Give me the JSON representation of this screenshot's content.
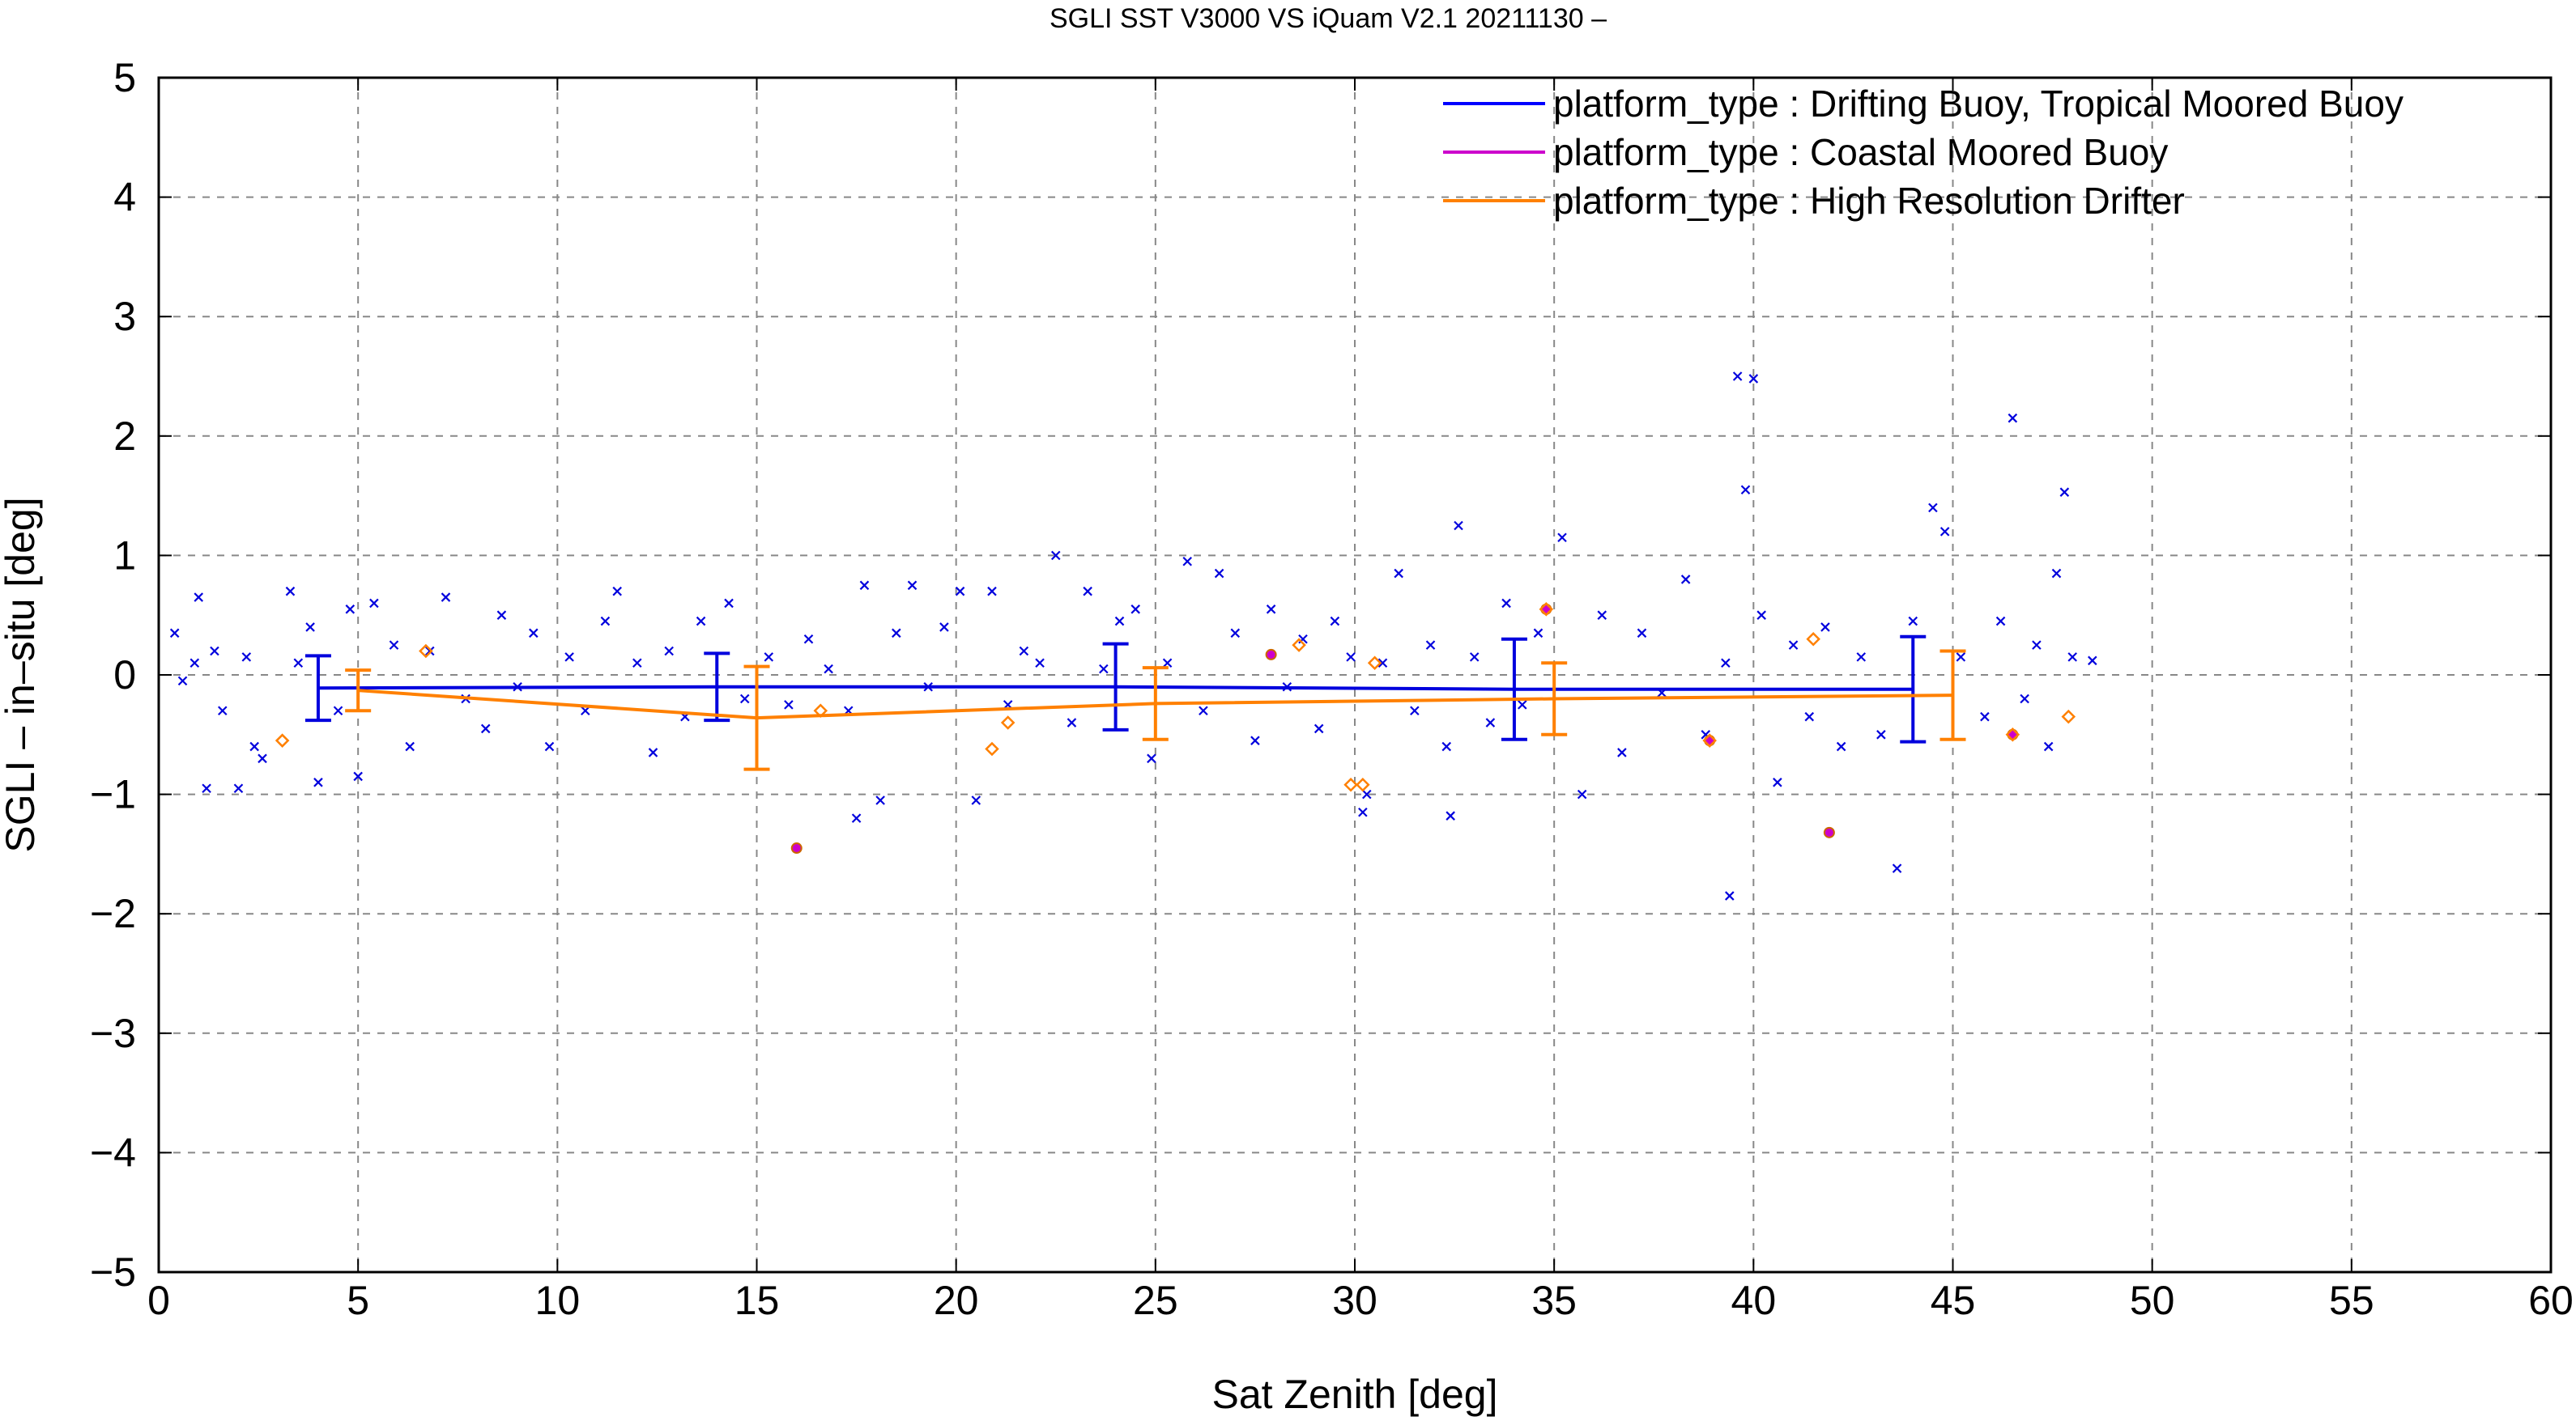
{
  "chart_data": {
    "type": "scatter",
    "title": "SGLI SST V3000 VS iQuam V2.1 20211130 –",
    "xlabel": "Sat Zenith [deg]",
    "ylabel": "SGLI – in–situ [deg]",
    "xlim": [
      0,
      60
    ],
    "ylim": [
      -5,
      5
    ],
    "xticks": [
      0,
      5,
      10,
      15,
      20,
      25,
      30,
      35,
      40,
      45,
      50,
      55,
      60
    ],
    "yticks": [
      -5,
      -4,
      -3,
      -2,
      -1,
      0,
      1,
      2,
      3,
      4,
      5
    ],
    "ytick_labels": [
      "−5",
      "−4",
      "−3",
      "−2",
      "−1",
      "0",
      "1",
      "2",
      "3",
      "4",
      "5"
    ],
    "grid": true,
    "legend_position": "top-right",
    "series": [
      {
        "name": "platform_type : Drifting Buoy, Tropical Moored Buoy",
        "color": "#0000dd",
        "marker": "x",
        "mean_line": {
          "x": [
            4,
            14,
            24,
            34,
            44
          ],
          "y": [
            -0.11,
            -0.1,
            -0.1,
            -0.12,
            -0.12
          ],
          "err": [
            0.27,
            0.28,
            0.36,
            0.42,
            0.44
          ]
        },
        "points": [
          [
            0.4,
            0.35
          ],
          [
            0.6,
            -0.05
          ],
          [
            0.9,
            0.1
          ],
          [
            1.0,
            0.65
          ],
          [
            1.2,
            -0.95
          ],
          [
            1.4,
            0.2
          ],
          [
            1.6,
            -0.3
          ],
          [
            2.0,
            -0.95
          ],
          [
            2.2,
            0.15
          ],
          [
            2.4,
            -0.6
          ],
          [
            2.6,
            -0.7
          ],
          [
            3.3,
            0.7
          ],
          [
            3.5,
            0.1
          ],
          [
            3.8,
            0.4
          ],
          [
            4.0,
            -0.9
          ],
          [
            4.5,
            -0.3
          ],
          [
            4.8,
            0.55
          ],
          [
            5.0,
            -0.85
          ],
          [
            5.4,
            0.6
          ],
          [
            5.9,
            0.25
          ],
          [
            6.3,
            -0.6
          ],
          [
            6.8,
            0.2
          ],
          [
            7.2,
            0.65
          ],
          [
            7.7,
            -0.2
          ],
          [
            8.2,
            -0.45
          ],
          [
            8.6,
            0.5
          ],
          [
            9.0,
            -0.1
          ],
          [
            9.4,
            0.35
          ],
          [
            9.8,
            -0.6
          ],
          [
            10.3,
            0.15
          ],
          [
            10.7,
            -0.3
          ],
          [
            11.2,
            0.45
          ],
          [
            11.5,
            0.7
          ],
          [
            12.0,
            0.1
          ],
          [
            12.4,
            -0.65
          ],
          [
            12.8,
            0.2
          ],
          [
            13.2,
            -0.35
          ],
          [
            13.6,
            0.45
          ],
          [
            14.3,
            0.6
          ],
          [
            14.7,
            -0.2
          ],
          [
            15.3,
            0.15
          ],
          [
            15.8,
            -0.25
          ],
          [
            16.3,
            0.3
          ],
          [
            16.8,
            0.05
          ],
          [
            17.3,
            -0.3
          ],
          [
            17.7,
            0.75
          ],
          [
            18.1,
            -1.05
          ],
          [
            18.5,
            0.35
          ],
          [
            18.9,
            0.75
          ],
          [
            19.3,
            -0.1
          ],
          [
            19.7,
            0.4
          ],
          [
            20.1,
            0.7
          ],
          [
            20.5,
            -1.05
          ],
          [
            20.9,
            0.7
          ],
          [
            21.3,
            -0.25
          ],
          [
            21.7,
            0.2
          ],
          [
            22.1,
            0.1
          ],
          [
            22.5,
            1.0
          ],
          [
            22.9,
            -0.4
          ],
          [
            23.3,
            0.7
          ],
          [
            23.7,
            0.05
          ],
          [
            24.1,
            0.45
          ],
          [
            24.5,
            0.55
          ],
          [
            24.9,
            -0.7
          ],
          [
            25.3,
            0.1
          ],
          [
            25.8,
            0.95
          ],
          [
            26.2,
            -0.3
          ],
          [
            26.6,
            0.85
          ],
          [
            27.0,
            0.35
          ],
          [
            27.5,
            -0.55
          ],
          [
            27.9,
            0.55
          ],
          [
            28.3,
            -0.1
          ],
          [
            28.7,
            0.3
          ],
          [
            29.1,
            -0.45
          ],
          [
            29.5,
            0.45
          ],
          [
            29.9,
            0.15
          ],
          [
            30.3,
            -1.0
          ],
          [
            30.7,
            0.1
          ],
          [
            31.1,
            0.85
          ],
          [
            31.5,
            -0.3
          ],
          [
            31.9,
            0.25
          ],
          [
            32.3,
            -0.6
          ],
          [
            32.6,
            1.25
          ],
          [
            33.0,
            0.15
          ],
          [
            33.4,
            -0.4
          ],
          [
            33.8,
            0.6
          ],
          [
            34.2,
            -0.25
          ],
          [
            34.6,
            0.35
          ],
          [
            35.2,
            1.15
          ],
          [
            35.7,
            -1.0
          ],
          [
            36.2,
            0.5
          ],
          [
            36.7,
            -0.65
          ],
          [
            37.2,
            0.35
          ],
          [
            37.7,
            -0.15
          ],
          [
            38.3,
            0.8
          ],
          [
            38.8,
            -0.5
          ],
          [
            39.3,
            0.1
          ],
          [
            39.6,
            2.5
          ],
          [
            39.8,
            1.55
          ],
          [
            40.0,
            2.48
          ],
          [
            40.2,
            0.5
          ],
          [
            40.6,
            -0.9
          ],
          [
            41.0,
            0.25
          ],
          [
            41.4,
            -0.35
          ],
          [
            41.8,
            0.4
          ],
          [
            42.2,
            -0.6
          ],
          [
            42.7,
            0.15
          ],
          [
            43.2,
            -0.5
          ],
          [
            43.6,
            -1.62
          ],
          [
            44.0,
            0.45
          ],
          [
            44.5,
            1.4
          ],
          [
            44.8,
            1.2
          ],
          [
            45.2,
            0.15
          ],
          [
            45.8,
            -0.35
          ],
          [
            46.2,
            0.45
          ],
          [
            46.5,
            2.15
          ],
          [
            46.8,
            -0.2
          ],
          [
            47.1,
            0.25
          ],
          [
            47.4,
            -0.6
          ],
          [
            47.6,
            0.85
          ],
          [
            47.8,
            1.53
          ],
          [
            48.0,
            0.15
          ],
          [
            48.5,
            0.12
          ],
          [
            39.4,
            -1.85
          ],
          [
            17.5,
            -1.2
          ],
          [
            30.2,
            -1.15
          ],
          [
            32.4,
            -1.18
          ]
        ]
      },
      {
        "name": "platform_type : Coastal Moored Buoy",
        "color": "#cc00cc",
        "marker": "circle",
        "points": [
          [
            16.0,
            -1.45
          ],
          [
            27.9,
            0.17
          ],
          [
            38.9,
            -0.55
          ],
          [
            41.9,
            -1.32
          ],
          [
            46.5,
            -0.5
          ],
          [
            34.8,
            0.55
          ]
        ]
      },
      {
        "name": "platform_type : High Resolution Drifter",
        "color": "#ff8000",
        "marker": "diamond",
        "mean_line": {
          "x": [
            5,
            15,
            25,
            35,
            45
          ],
          "y": [
            -0.13,
            -0.36,
            -0.24,
            -0.2,
            -0.17
          ],
          "err": [
            0.17,
            0.43,
            0.3,
            0.3,
            0.37
          ]
        },
        "points": [
          [
            3.1,
            -0.55
          ],
          [
            6.7,
            0.2
          ],
          [
            16.6,
            -0.3
          ],
          [
            20.9,
            -0.62
          ],
          [
            21.3,
            -0.4
          ],
          [
            28.6,
            0.25
          ],
          [
            29.9,
            -0.92
          ],
          [
            30.2,
            -0.92
          ],
          [
            30.5,
            0.1
          ],
          [
            34.8,
            0.55
          ],
          [
            38.9,
            -0.55
          ],
          [
            41.5,
            0.3
          ],
          [
            46.5,
            -0.5
          ],
          [
            47.9,
            -0.35
          ]
        ]
      }
    ]
  }
}
